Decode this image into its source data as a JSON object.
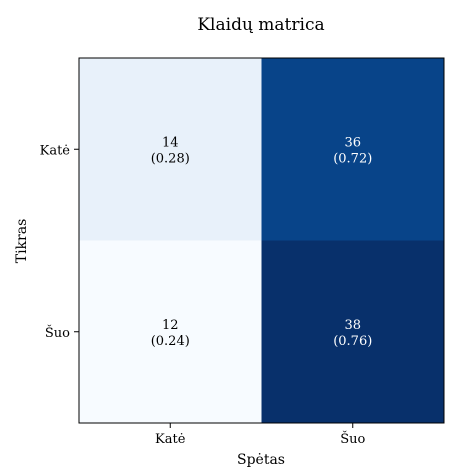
{
  "chart_data": {
    "type": "heatmap",
    "title": "Klaidų matrica",
    "xlabel": "Spėtas",
    "ylabel": "Tikras",
    "x_categories": [
      "Katė",
      "Šuo"
    ],
    "y_categories": [
      "Katė",
      "Šuo"
    ],
    "cells": [
      [
        {
          "count": "14",
          "fraction": "(0.28)",
          "value": 0.28
        },
        {
          "count": "36",
          "fraction": "(0.72)",
          "value": 0.72
        }
      ],
      [
        {
          "count": "12",
          "fraction": "(0.24)",
          "value": 0.24
        },
        {
          "count": "38",
          "fraction": "(0.76)",
          "value": 0.76
        }
      ]
    ],
    "colormap": "Blues",
    "grid": false,
    "legend": "none"
  }
}
